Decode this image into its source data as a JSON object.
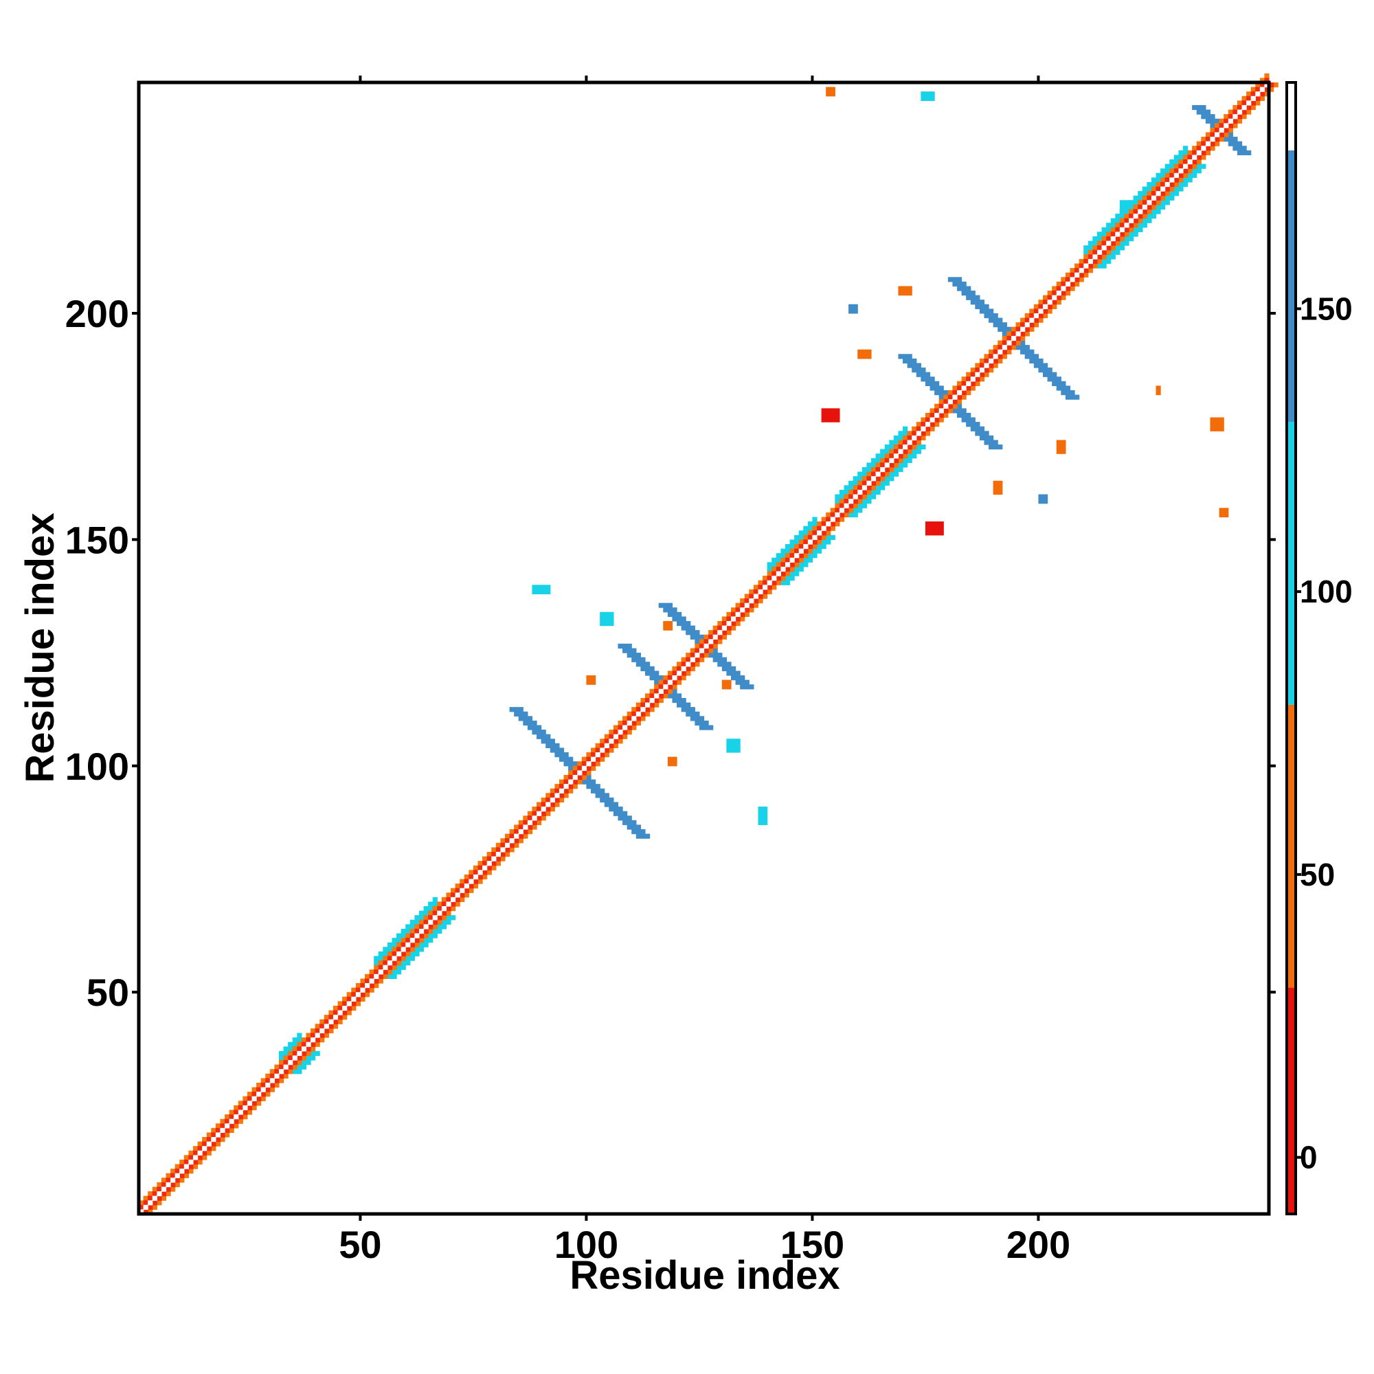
{
  "chart_data": {
    "type": "heatmap",
    "title": "",
    "xlabel": "Residue index",
    "ylabel": "Residue index",
    "xlim": [
      1,
      251
    ],
    "ylim": [
      1,
      251
    ],
    "x_ticks": [
      50,
      100,
      150,
      200
    ],
    "y_ticks": [
      50,
      100,
      150,
      200
    ],
    "x_tick_labels": [
      "50",
      "100",
      "150",
      "200"
    ],
    "y_tick_labels": [
      "50",
      "100",
      "150",
      "200"
    ],
    "grid": false,
    "colorbar": {
      "range": [
        -10,
        190
      ],
      "ticks": [
        0,
        50,
        100,
        150
      ],
      "tick_labels": [
        "0",
        "50",
        "100",
        "150"
      ],
      "bands": [
        {
          "from": -10,
          "to": 30,
          "color": "#e8120c"
        },
        {
          "from": 30,
          "to": 80,
          "color": "#f26c0a"
        },
        {
          "from": 80,
          "to": 130,
          "color": "#18d2e8"
        },
        {
          "from": 130,
          "to": 178,
          "color": "#3f8cc9"
        },
        {
          "from": 178,
          "to": 190,
          "color": "#ffffff"
        }
      ]
    },
    "diagonal": {
      "from": 1,
      "to": 250,
      "inner_color": "#ffffff",
      "band_color": "#ee2a10",
      "outer_color": "#f5780e"
    },
    "cross_patterns": [
      {
        "center": [
          98,
          98
        ],
        "half_length": 14,
        "width": 3,
        "color": "#3f8cc9"
      },
      {
        "center": [
          126,
          126
        ],
        "half_length": 9,
        "width": 3,
        "color": "#3f8cc9"
      },
      {
        "center": [
          117,
          117
        ],
        "half_length": 9,
        "width": 3,
        "color": "#3f8cc9"
      },
      {
        "center": [
          180,
          180
        ],
        "half_length": 10,
        "width": 3,
        "color": "#3f8cc9"
      },
      {
        "center": [
          194,
          194
        ],
        "half_length": 13,
        "width": 3,
        "color": "#3f8cc9"
      },
      {
        "center": [
          240,
          240
        ],
        "half_length": 5,
        "width": 2,
        "color": "#3f8cc9"
      }
    ],
    "helix_segments": [
      {
        "from": 140,
        "to": 150,
        "color": "#18d2e8"
      },
      {
        "from": 155,
        "to": 170,
        "color": "#18d2e8"
      },
      {
        "from": 210,
        "to": 218,
        "color": "#18d2e8"
      },
      {
        "from": 218,
        "to": 232,
        "color": "#18d2e8"
      },
      {
        "from": 32,
        "to": 36,
        "color": "#18d2e8"
      },
      {
        "from": 53,
        "to": 58,
        "color": "#18d2e8"
      },
      {
        "from": 58,
        "to": 66,
        "color": "#18d2e8"
      }
    ],
    "contacts": [
      {
        "x": 152,
        "y": 176,
        "w": 4,
        "h": 3,
        "value": 10
      },
      {
        "x": 175,
        "y": 151,
        "w": 4,
        "h": 3,
        "value": 10
      },
      {
        "x": 238,
        "y": 174,
        "w": 3,
        "h": 3,
        "value": 40
      },
      {
        "x": 174,
        "y": 247,
        "w": 3,
        "h": 2,
        "value": 100
      },
      {
        "x": 88,
        "y": 138,
        "w": 4,
        "h": 2,
        "value": 110
      },
      {
        "x": 138,
        "y": 87,
        "w": 2,
        "h": 4,
        "value": 110
      },
      {
        "x": 103,
        "y": 131,
        "w": 3,
        "h": 3,
        "value": 90
      },
      {
        "x": 131,
        "y": 103,
        "w": 3,
        "h": 3,
        "value": 90
      },
      {
        "x": 213,
        "y": 214,
        "w": 5,
        "h": 4,
        "value": 100
      },
      {
        "x": 218,
        "y": 221,
        "w": 4,
        "h": 4,
        "value": 100
      },
      {
        "x": 153,
        "y": 248,
        "w": 2,
        "h": 2,
        "value": 55
      },
      {
        "x": 158,
        "y": 200,
        "w": 2,
        "h": 2,
        "value": 150
      },
      {
        "x": 200,
        "y": 158,
        "w": 2,
        "h": 2,
        "value": 150
      },
      {
        "x": 169,
        "y": 204,
        "w": 3,
        "h": 2,
        "value": 60
      },
      {
        "x": 204,
        "y": 169,
        "w": 2,
        "h": 3,
        "value": 60
      },
      {
        "x": 160,
        "y": 190,
        "w": 3,
        "h": 2,
        "value": 60
      },
      {
        "x": 190,
        "y": 160,
        "w": 2,
        "h": 3,
        "value": 60
      },
      {
        "x": 226,
        "y": 182,
        "w": 1,
        "h": 2,
        "value": 60
      },
      {
        "x": 240,
        "y": 155,
        "w": 2,
        "h": 2,
        "value": 60
      },
      {
        "x": 118,
        "y": 100,
        "w": 2,
        "h": 2,
        "value": 60
      },
      {
        "x": 100,
        "y": 118,
        "w": 2,
        "h": 2,
        "value": 60
      },
      {
        "x": 130,
        "y": 117,
        "w": 2,
        "h": 2,
        "value": 60
      },
      {
        "x": 117,
        "y": 130,
        "w": 2,
        "h": 2,
        "value": 60
      }
    ]
  }
}
